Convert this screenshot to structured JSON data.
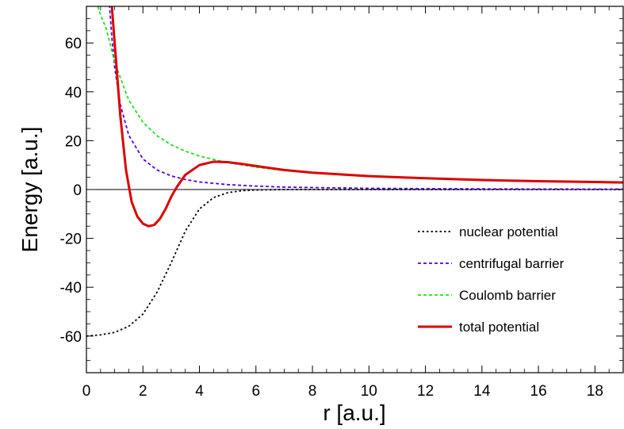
{
  "chart_data": {
    "type": "line",
    "title": "",
    "xlabel": "r [a.u.]",
    "ylabel": "Energy [a.u.]",
    "xlim": [
      0,
      19
    ],
    "ylim": [
      -75,
      75
    ],
    "x_ticks": [
      0,
      2,
      4,
      6,
      8,
      10,
      12,
      14,
      16,
      18
    ],
    "y_ticks": [
      -60,
      -40,
      -20,
      0,
      20,
      40,
      60
    ],
    "grid": false,
    "zero_line": true,
    "legend_position": "lower-right",
    "series": [
      {
        "name": "nuclear potential",
        "color": "#000000",
        "style": "dotted",
        "x": [
          0,
          0.5,
          1,
          1.5,
          2,
          2.5,
          3,
          3.5,
          4,
          4.5,
          5,
          5.5,
          6,
          6.5,
          7,
          8,
          9,
          10,
          12,
          14,
          16,
          18,
          19
        ],
        "y": [
          -60,
          -59.5,
          -58.5,
          -56,
          -51,
          -42,
          -30,
          -17,
          -8,
          -3.3,
          -1.3,
          -0.5,
          -0.2,
          -0.1,
          0,
          0,
          0,
          0,
          0,
          0,
          0,
          0,
          0
        ]
      },
      {
        "name": "centrifugal barrier",
        "color": "#5500dd",
        "style": "dashed",
        "x": [
          0.8,
          0.9,
          1,
          1.2,
          1.5,
          2,
          2.5,
          3,
          3.5,
          4,
          5,
          6,
          7,
          8,
          10,
          12,
          14,
          16,
          18,
          19
        ],
        "y": [
          78,
          62,
          50,
          34.7,
          22.2,
          12.5,
          8,
          5.6,
          4.1,
          3.1,
          2,
          1.4,
          1,
          0.8,
          0.5,
          0.35,
          0.26,
          0.2,
          0.15,
          0.14
        ]
      },
      {
        "name": "Coulomb barrier",
        "color": "#22dd22",
        "style": "dashed",
        "x": [
          0.4,
          0.5,
          0.7,
          1,
          1.5,
          2,
          2.5,
          3,
          3.5,
          4,
          5,
          6,
          7,
          8,
          10,
          12,
          14,
          16,
          18,
          19
        ],
        "y": [
          75,
          71.5,
          66,
          52,
          36.6,
          27.5,
          22,
          18.3,
          15.7,
          13.7,
          11,
          9.2,
          7.8,
          6.9,
          5.5,
          4.6,
          3.9,
          3.4,
          3.1,
          2.9
        ]
      },
      {
        "name": "total potential",
        "color": "#dd0000",
        "style": "solid",
        "x": [
          0.9,
          1,
          1.2,
          1.4,
          1.6,
          1.8,
          2,
          2.2,
          2.4,
          2.6,
          2.8,
          3,
          3.2,
          3.5,
          4,
          4.5,
          5,
          5.5,
          6,
          7,
          8,
          10,
          12,
          14,
          16,
          18,
          19
        ],
        "y": [
          75,
          60,
          30,
          8,
          -5,
          -11,
          -14,
          -15,
          -14.5,
          -12,
          -8,
          -3,
          1,
          6,
          10,
          11.4,
          11.2,
          10.5,
          9.6,
          8,
          6.9,
          5.5,
          4.6,
          3.9,
          3.4,
          3.1,
          2.9
        ]
      }
    ]
  }
}
